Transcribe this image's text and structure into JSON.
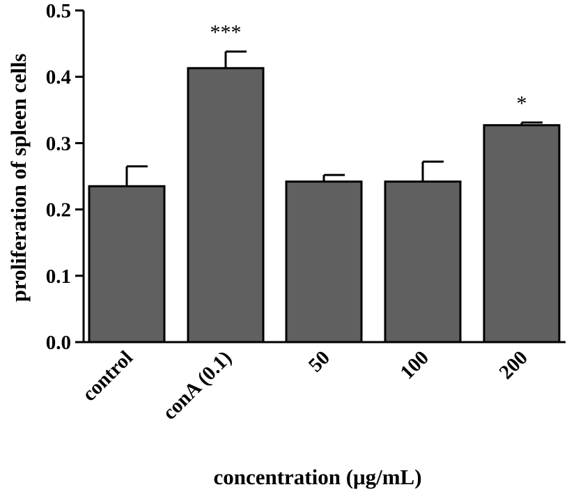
{
  "chart_data": {
    "type": "bar",
    "categories": [
      "control",
      "conA (0.1)",
      "50",
      "100",
      "200"
    ],
    "values": [
      0.235,
      0.413,
      0.242,
      0.242,
      0.327
    ],
    "errors": [
      0.03,
      0.025,
      0.01,
      0.03,
      0.004
    ],
    "significance": [
      "",
      "***",
      "",
      "",
      "*"
    ],
    "xlabel": "concentration (μg/mL)",
    "ylabel": "proliferation of spleen cells",
    "ylim": [
      0,
      0.5
    ],
    "yticks": [
      "0.0",
      "0.1",
      "0.2",
      "0.3",
      "0.4",
      "0.5"
    ],
    "grid": false,
    "bar_color": "#606060"
  }
}
